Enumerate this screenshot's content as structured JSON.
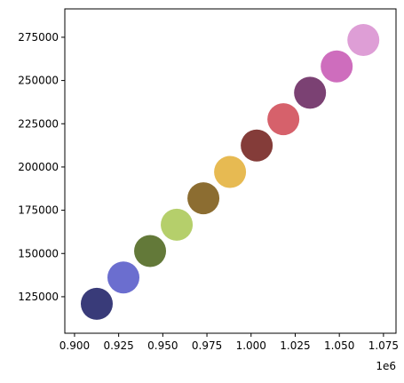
{
  "chart_data": {
    "type": "scatter",
    "x": [
      912600,
      927700,
      942800,
      957900,
      973000,
      988100,
      1003200,
      1018300,
      1033400,
      1048500,
      1063600
    ],
    "values": [
      120900,
      136150,
      151400,
      166650,
      181900,
      197150,
      212400,
      227650,
      242900,
      258150,
      273400
    ],
    "colors": [
      "#393b79",
      "#6b6ecf",
      "#637939",
      "#b5cf6b",
      "#8c6d31",
      "#e7ba52",
      "#843c39",
      "#d6616b",
      "#7b4173",
      "#ce6dbd",
      "#de9ed6"
    ],
    "xlim": [
      894500,
      1082100
    ],
    "ylim": [
      103900,
      291400
    ],
    "xticks": [
      {
        "value": 900000,
        "label": "0.900"
      },
      {
        "value": 925000,
        "label": "0.925"
      },
      {
        "value": 950000,
        "label": "0.950"
      },
      {
        "value": 975000,
        "label": "0.975"
      },
      {
        "value": 1000000,
        "label": "1.000"
      },
      {
        "value": 1025000,
        "label": "1.025"
      },
      {
        "value": 1050000,
        "label": "1.050"
      },
      {
        "value": 1075000,
        "label": "1.075"
      }
    ],
    "yticks": [
      125000,
      150000,
      175000,
      200000,
      225000,
      250000,
      275000
    ],
    "x_offset_label": "1e6"
  }
}
